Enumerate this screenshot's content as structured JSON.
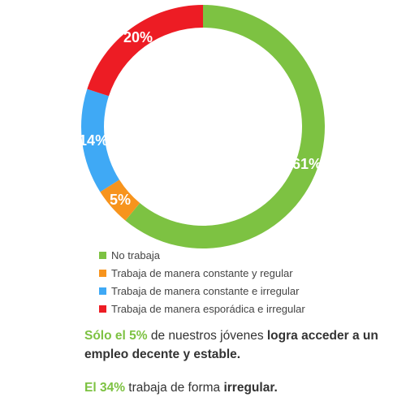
{
  "chart_data": {
    "type": "pie",
    "subtype": "donut",
    "categories": [
      "No trabaja",
      "Trabaja de manera constante y regular",
      "Trabaja de manera constante e irregular",
      "Trabaja de manera esporádica e irregular"
    ],
    "values": [
      61,
      5,
      14,
      20
    ],
    "labels": [
      "61%",
      "5%",
      "14%",
      "20%"
    ],
    "colors": [
      "#7dc242",
      "#f7941d",
      "#3fa9f5",
      "#ed1c24"
    ],
    "legend": "bottom",
    "title": ""
  },
  "notes": {
    "line1": {
      "a": "Sólo el 5%",
      "b": " de nuestros jóvenes ",
      "c": "logra acceder a un empleo decente y estable."
    },
    "line2": {
      "a": "El 34%",
      "b": " trabaja de forma ",
      "c": "irregular."
    }
  }
}
